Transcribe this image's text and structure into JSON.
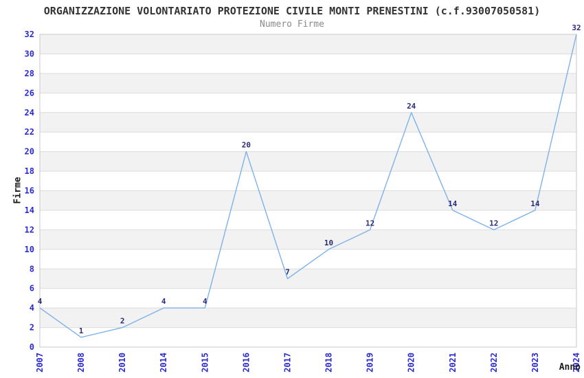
{
  "chart_data": {
    "type": "line",
    "title": "ORGANIZZAZIONE VOLONTARIATO PROTEZIONE CIVILE MONTI PRENESTINI (c.f.93007050581)",
    "subtitle": "Numero Firme",
    "xlabel": "Anno",
    "ylabel": "Firme",
    "categories": [
      "2007",
      "2008",
      "2010",
      "2014",
      "2015",
      "2016",
      "2017",
      "2018",
      "2019",
      "2020",
      "2021",
      "2022",
      "2023",
      "2024"
    ],
    "values": [
      4,
      1,
      2,
      4,
      4,
      20,
      7,
      10,
      12,
      24,
      14,
      12,
      14,
      32
    ],
    "ylim": [
      0,
      32
    ],
    "ytick_step": 2,
    "grid": "horizontal-only",
    "legend": "none",
    "colors": {
      "title": "#333333",
      "subtitle": "#8a8a8a",
      "axis_title": "#1a1a1a",
      "tick_label": "#2a2ad2",
      "point_label": "#2c2c7a",
      "line": "#7db2e8",
      "band_light": "#ffffff",
      "band_dark": "#f2f2f2",
      "gridline": "#dcdcdc",
      "plot_border": "#c8c8c8",
      "background": "#ffffff"
    }
  }
}
